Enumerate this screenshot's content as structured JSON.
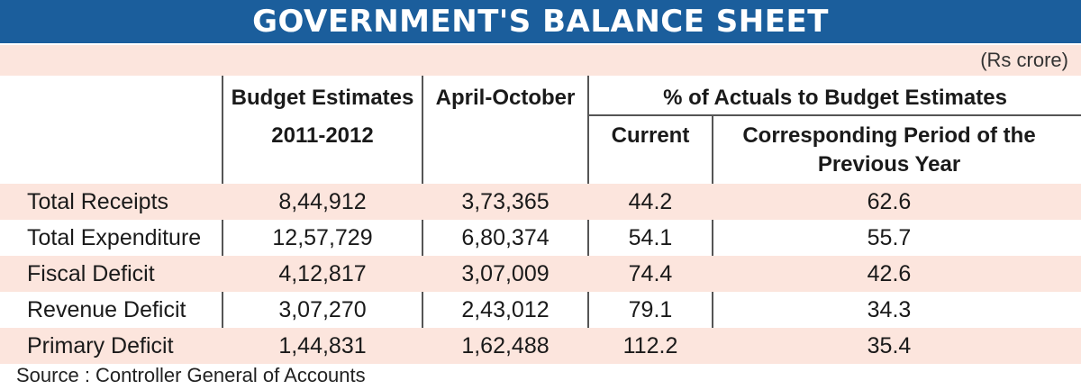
{
  "title": "GOVERNMENT'S BALANCE SHEET",
  "unit": "(Rs crore)",
  "headers": {
    "budget_line1": "Budget Estimates",
    "budget_line2": "2011-2012",
    "april_october": "April-October",
    "pct_group": "% of Actuals to Budget Estimates",
    "current": "Current",
    "prev_line1": "Corresponding Period of the",
    "prev_line2": "Previous Year"
  },
  "rows": [
    {
      "label": "Total Receipts",
      "budget": "8,44,912",
      "apr_oct": "3,73,365",
      "current": "44.2",
      "previous": "62.6"
    },
    {
      "label": "Total Expenditure",
      "budget": "12,57,729",
      "apr_oct": "6,80,374",
      "current": "54.1",
      "previous": "55.7"
    },
    {
      "label": "Fiscal Deficit",
      "budget": "4,12,817",
      "apr_oct": "3,07,009",
      "current": "74.4",
      "previous": "42.6"
    },
    {
      "label": "Revenue Deficit",
      "budget": "3,07,270",
      "apr_oct": "2,43,012",
      "current": "79.1",
      "previous": "34.3"
    },
    {
      "label": "Primary Deficit",
      "budget": "1,44,831",
      "apr_oct": "1,62,488",
      "current": "112.2",
      "previous": "35.4"
    }
  ],
  "source": "Source : Controller General of Accounts",
  "colors": {
    "title_bg": "#1b5e9c",
    "shade": "#fce5dd"
  },
  "chart_data": {
    "type": "table",
    "title": "GOVERNMENT'S BALANCE SHEET",
    "unit": "(Rs crore)",
    "columns": [
      "Budget Estimates 2011-2012",
      "April-October",
      "% of Actuals to Budget Estimates: Current",
      "% of Actuals to Budget Estimates: Corresponding Period of the Previous Year"
    ],
    "rows": [
      "Total Receipts",
      "Total Expenditure",
      "Fiscal Deficit",
      "Revenue Deficit",
      "Primary Deficit"
    ],
    "values": [
      [
        844912,
        373365,
        44.2,
        62.6
      ],
      [
        1257729,
        680374,
        54.1,
        55.7
      ],
      [
        412817,
        307009,
        74.4,
        42.6
      ],
      [
        307270,
        243012,
        79.1,
        34.3
      ],
      [
        144831,
        162488,
        112.2,
        35.4
      ]
    ]
  }
}
